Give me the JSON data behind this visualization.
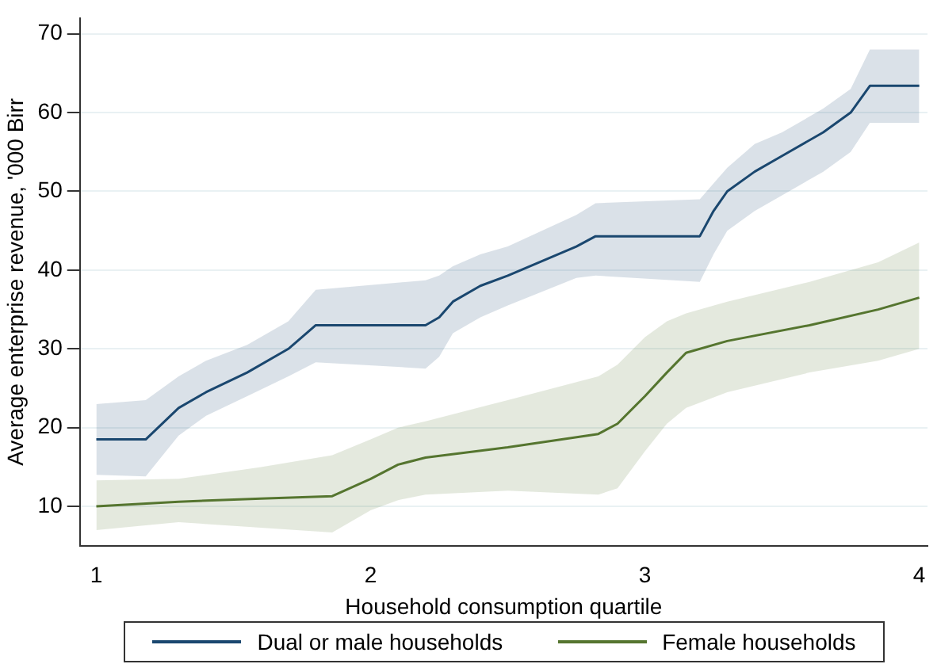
{
  "chart_data": {
    "type": "line",
    "xlabel": "Household consumption quartile",
    "ylabel": "Average enterprise revenue, '000 Birr",
    "xlim": [
      0.94,
      4.03
    ],
    "xticks": [
      1,
      2,
      3,
      4
    ],
    "ylim": [
      5,
      72
    ],
    "yticks": [
      10,
      20,
      30,
      40,
      50,
      60,
      70
    ],
    "grid": "y",
    "legend": "bottom",
    "marker": "none",
    "line_style": "solid",
    "series": [
      {
        "name": "Dual or male households",
        "color": "#1a476f",
        "x": [
          1,
          1.18,
          1.3,
          1.4,
          1.55,
          1.7,
          1.8,
          2.2,
          2.25,
          2.3,
          2.4,
          2.5,
          2.75,
          2.82,
          3.2,
          3.25,
          3.3,
          3.4,
          3.5,
          3.65,
          3.75,
          3.82,
          4
        ],
        "values": [
          18.5,
          18.5,
          22.5,
          24.5,
          27,
          30,
          33,
          33,
          34,
          36,
          38,
          39.3,
          43,
          44.3,
          44.3,
          47.5,
          50,
          52.5,
          54.5,
          57.5,
          60,
          63.4,
          63.4
        ],
        "upper": [
          23,
          23.5,
          26.5,
          28.5,
          30.5,
          33.5,
          37.5,
          38.7,
          39.3,
          40.5,
          42,
          43,
          47,
          48.5,
          49,
          51,
          53,
          56,
          57.5,
          60.5,
          63,
          68,
          68
        ],
        "lower": [
          14,
          13.8,
          19,
          21.5,
          24,
          26.5,
          28.3,
          27.5,
          29,
          32,
          34,
          35.5,
          39,
          39.3,
          38.5,
          42,
          45,
          47.5,
          49.5,
          52.5,
          55,
          58.7,
          58.7
        ]
      },
      {
        "name": "Female households",
        "color": "#55752f",
        "x": [
          1,
          1.3,
          1.6,
          1.86,
          2,
          2.1,
          2.2,
          2.5,
          2.83,
          2.9,
          3,
          3.08,
          3.15,
          3.3,
          3.6,
          3.85,
          4
        ],
        "values": [
          10,
          10.6,
          11,
          11.3,
          13.5,
          15.3,
          16.2,
          17.5,
          19.2,
          20.5,
          24,
          27,
          29.5,
          31,
          33,
          35,
          36.5
        ],
        "upper": [
          13.3,
          13.5,
          15,
          16.5,
          18.5,
          20,
          20.8,
          23.5,
          26.5,
          28,
          31.5,
          33.5,
          34.5,
          36,
          38.5,
          41,
          43.5
        ],
        "lower": [
          7,
          8,
          7.3,
          6.7,
          9.5,
          10.8,
          11.5,
          12,
          11.5,
          12.3,
          17,
          20.5,
          22.5,
          24.5,
          27,
          28.5,
          30
        ]
      }
    ]
  }
}
